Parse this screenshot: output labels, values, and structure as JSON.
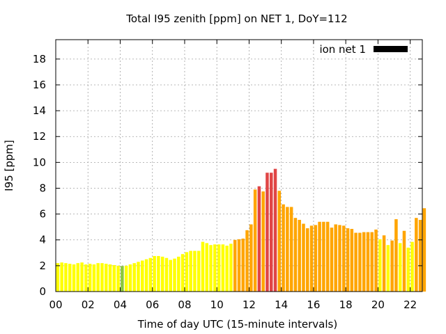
{
  "chart_data": {
    "type": "bar",
    "title": "Total I95 zenith [ppm] on NET 1, DoY=112",
    "xlabel": "Time of day UTC (15-minute intervals)",
    "ylabel": "I95 [ppm]",
    "xlim": [
      0,
      22.75
    ],
    "ylim": [
      0,
      19.5
    ],
    "x_ticks": [
      "00",
      "02",
      "04",
      "06",
      "08",
      "10",
      "12",
      "14",
      "16",
      "18",
      "20",
      "22"
    ],
    "y_ticks": [
      "0",
      "2",
      "4",
      "6",
      "8",
      "10",
      "12",
      "14",
      "16",
      "18"
    ],
    "grid": true,
    "legend": {
      "label": "ion net 1",
      "position": "top-right",
      "swatch_color": "#000000"
    },
    "interval_hours": 0.25,
    "colors": {
      "yellow": "#ffff00",
      "green": "#8bc73a",
      "orange": "#ffa500",
      "red": "#e04545"
    },
    "values": [
      2.2,
      2.25,
      2.2,
      2.15,
      2.1,
      2.2,
      2.25,
      2.1,
      2.15,
      2.1,
      2.2,
      2.2,
      2.15,
      2.1,
      2.05,
      2.0,
      1.98,
      2.0,
      2.1,
      2.2,
      2.3,
      2.4,
      2.5,
      2.6,
      2.75,
      2.75,
      2.7,
      2.6,
      2.45,
      2.55,
      2.7,
      2.9,
      3.05,
      3.15,
      3.15,
      3.15,
      3.85,
      3.75,
      3.6,
      3.65,
      3.65,
      3.65,
      3.55,
      3.7,
      4.0,
      4.05,
      4.1,
      4.75,
      5.2,
      7.9,
      8.15,
      7.75,
      9.2,
      9.2,
      9.5,
      7.8,
      6.75,
      6.55,
      6.55,
      5.7,
      5.55,
      5.25,
      4.9,
      5.1,
      5.15,
      5.4,
      5.4,
      5.4,
      4.95,
      5.2,
      5.15,
      5.1,
      4.9,
      4.85,
      4.55,
      4.55,
      4.6,
      4.6,
      4.6,
      4.8,
      4.05,
      4.35,
      3.6,
      3.95,
      5.6,
      3.75,
      4.7,
      3.4,
      3.85,
      5.7,
      5.55,
      6.45
    ],
    "bar_colors": [
      "yellow",
      "yellow",
      "yellow",
      "yellow",
      "yellow",
      "yellow",
      "yellow",
      "yellow",
      "yellow",
      "yellow",
      "yellow",
      "yellow",
      "yellow",
      "yellow",
      "yellow",
      "yellow",
      "green",
      "yellow",
      "yellow",
      "yellow",
      "yellow",
      "yellow",
      "yellow",
      "yellow",
      "yellow",
      "yellow",
      "yellow",
      "yellow",
      "yellow",
      "yellow",
      "yellow",
      "yellow",
      "yellow",
      "yellow",
      "yellow",
      "yellow",
      "yellow",
      "yellow",
      "yellow",
      "yellow",
      "yellow",
      "yellow",
      "yellow",
      "yellow",
      "orange",
      "orange",
      "orange",
      "orange",
      "orange",
      "orange",
      "red",
      "orange",
      "red",
      "red",
      "red",
      "orange",
      "orange",
      "orange",
      "orange",
      "orange",
      "orange",
      "orange",
      "orange",
      "orange",
      "orange",
      "orange",
      "orange",
      "orange",
      "orange",
      "orange",
      "orange",
      "orange",
      "orange",
      "orange",
      "orange",
      "orange",
      "orange",
      "orange",
      "orange",
      "orange",
      "yellow",
      "orange",
      "yellow",
      "orange",
      "orange",
      "yellow",
      "orange",
      "yellow",
      "yellow",
      "orange",
      "orange",
      "orange"
    ]
  }
}
